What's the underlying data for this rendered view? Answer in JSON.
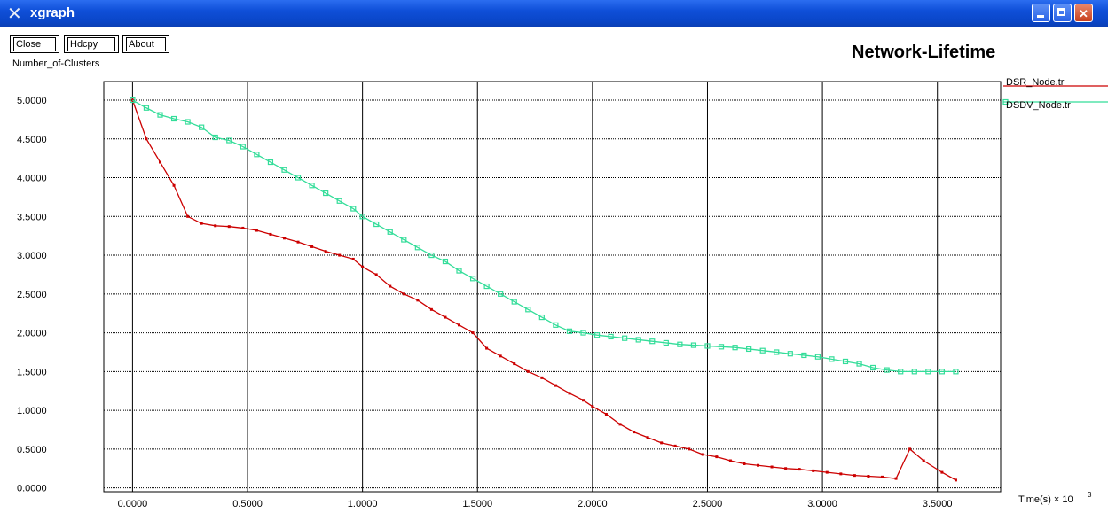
{
  "window": {
    "title": "xgraph",
    "buttons": [
      "Close",
      "Hdcpy",
      "About"
    ]
  },
  "chart_data": {
    "type": "line",
    "title": "Network-Lifetime",
    "xlabel": "Time(s) × 10",
    "xlabel_exp": "3",
    "ylabel": "Number_of-Clusters",
    "xlim": [
      -0.125,
      3.775
    ],
    "ylim": [
      -0.05,
      5.24
    ],
    "grid": true,
    "legend_position": "top-right",
    "x_ticks": [
      "0.0000",
      "0.5000",
      "1.0000",
      "1.5000",
      "2.0000",
      "2.5000",
      "3.0000",
      "3.5000"
    ],
    "y_ticks": [
      "0.0000",
      "0.5000",
      "1.0000",
      "1.5000",
      "2.0000",
      "2.5000",
      "3.0000",
      "3.5000",
      "4.0000",
      "4.5000",
      "5.0000"
    ],
    "series": [
      {
        "name": "DSR_Node.tr",
        "color": "#cc0000",
        "points": [
          [
            0.0,
            5.0
          ],
          [
            0.06,
            4.5
          ],
          [
            0.12,
            4.2
          ],
          [
            0.18,
            3.9
          ],
          [
            0.24,
            3.5
          ],
          [
            0.3,
            3.41
          ],
          [
            0.36,
            3.38
          ],
          [
            0.42,
            3.37
          ],
          [
            0.48,
            3.35
          ],
          [
            0.54,
            3.32
          ],
          [
            0.6,
            3.27
          ],
          [
            0.66,
            3.22
          ],
          [
            0.72,
            3.17
          ],
          [
            0.78,
            3.11
          ],
          [
            0.84,
            3.05
          ],
          [
            0.9,
            3.0
          ],
          [
            0.96,
            2.95
          ],
          [
            1.0,
            2.85
          ],
          [
            1.06,
            2.75
          ],
          [
            1.12,
            2.6
          ],
          [
            1.18,
            2.5
          ],
          [
            1.24,
            2.42
          ],
          [
            1.3,
            2.3
          ],
          [
            1.36,
            2.2
          ],
          [
            1.42,
            2.1
          ],
          [
            1.48,
            2.0
          ],
          [
            1.54,
            1.8
          ],
          [
            1.6,
            1.7
          ],
          [
            1.66,
            1.6
          ],
          [
            1.72,
            1.5
          ],
          [
            1.78,
            1.42
          ],
          [
            1.84,
            1.32
          ],
          [
            1.9,
            1.22
          ],
          [
            1.96,
            1.13
          ],
          [
            2.0,
            1.05
          ],
          [
            2.06,
            0.95
          ],
          [
            2.12,
            0.82
          ],
          [
            2.18,
            0.72
          ],
          [
            2.24,
            0.65
          ],
          [
            2.3,
            0.58
          ],
          [
            2.36,
            0.54
          ],
          [
            2.42,
            0.5
          ],
          [
            2.48,
            0.43
          ],
          [
            2.54,
            0.4
          ],
          [
            2.6,
            0.35
          ],
          [
            2.66,
            0.31
          ],
          [
            2.72,
            0.29
          ],
          [
            2.78,
            0.27
          ],
          [
            2.84,
            0.25
          ],
          [
            2.9,
            0.24
          ],
          [
            2.96,
            0.22
          ],
          [
            3.02,
            0.2
          ],
          [
            3.08,
            0.18
          ],
          [
            3.14,
            0.16
          ],
          [
            3.2,
            0.15
          ],
          [
            3.26,
            0.14
          ],
          [
            3.32,
            0.12
          ],
          [
            3.38,
            0.5
          ],
          [
            3.44,
            0.35
          ],
          [
            3.52,
            0.2
          ],
          [
            3.58,
            0.1
          ]
        ]
      },
      {
        "name": "DSDV_Node.tr",
        "color": "#33dd99",
        "points": [
          [
            0.0,
            5.0
          ],
          [
            0.06,
            4.9
          ],
          [
            0.12,
            4.81
          ],
          [
            0.18,
            4.76
          ],
          [
            0.24,
            4.72
          ],
          [
            0.3,
            4.65
          ],
          [
            0.36,
            4.52
          ],
          [
            0.42,
            4.48
          ],
          [
            0.48,
            4.4
          ],
          [
            0.54,
            4.3
          ],
          [
            0.6,
            4.2
          ],
          [
            0.66,
            4.1
          ],
          [
            0.72,
            4.0
          ],
          [
            0.78,
            3.9
          ],
          [
            0.84,
            3.8
          ],
          [
            0.9,
            3.7
          ],
          [
            0.96,
            3.6
          ],
          [
            1.0,
            3.5
          ],
          [
            1.06,
            3.4
          ],
          [
            1.12,
            3.3
          ],
          [
            1.18,
            3.2
          ],
          [
            1.24,
            3.1
          ],
          [
            1.3,
            3.0
          ],
          [
            1.36,
            2.92
          ],
          [
            1.42,
            2.8
          ],
          [
            1.48,
            2.7
          ],
          [
            1.54,
            2.6
          ],
          [
            1.6,
            2.5
          ],
          [
            1.66,
            2.4
          ],
          [
            1.72,
            2.3
          ],
          [
            1.78,
            2.2
          ],
          [
            1.84,
            2.1
          ],
          [
            1.9,
            2.02
          ],
          [
            1.96,
            2.0
          ],
          [
            2.02,
            1.97
          ],
          [
            2.08,
            1.95
          ],
          [
            2.14,
            1.93
          ],
          [
            2.2,
            1.91
          ],
          [
            2.26,
            1.89
          ],
          [
            2.32,
            1.87
          ],
          [
            2.38,
            1.85
          ],
          [
            2.44,
            1.84
          ],
          [
            2.5,
            1.83
          ],
          [
            2.56,
            1.82
          ],
          [
            2.62,
            1.81
          ],
          [
            2.68,
            1.79
          ],
          [
            2.74,
            1.77
          ],
          [
            2.8,
            1.75
          ],
          [
            2.86,
            1.73
          ],
          [
            2.92,
            1.71
          ],
          [
            2.98,
            1.69
          ],
          [
            3.04,
            1.66
          ],
          [
            3.1,
            1.63
          ],
          [
            3.16,
            1.6
          ],
          [
            3.22,
            1.55
          ],
          [
            3.28,
            1.52
          ],
          [
            3.34,
            1.5
          ],
          [
            3.4,
            1.5
          ],
          [
            3.46,
            1.5
          ],
          [
            3.52,
            1.5
          ],
          [
            3.58,
            1.5
          ]
        ]
      }
    ]
  }
}
